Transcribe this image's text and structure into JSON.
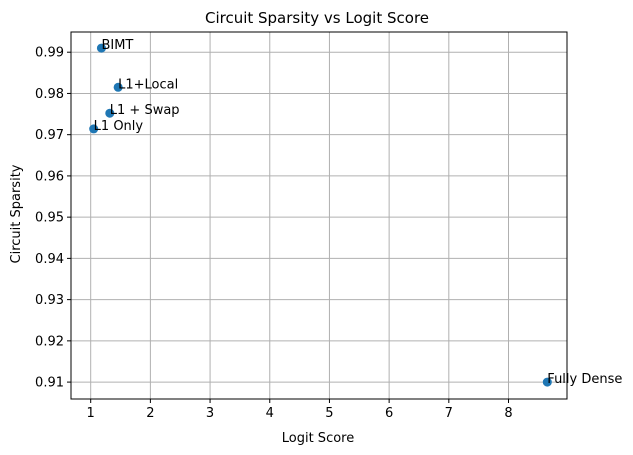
{
  "chart_data": {
    "type": "scatter",
    "title": "Circuit Sparsity vs Logit Score",
    "xlabel": "Logit Score",
    "ylabel": "Circuit Sparsity",
    "xlim": [
      0.67,
      8.98
    ],
    "ylim": [
      0.9059,
      0.9949
    ],
    "xticks": [
      1,
      2,
      3,
      4,
      5,
      6,
      7,
      8
    ],
    "yticks": [
      0.91,
      0.92,
      0.93,
      0.94,
      0.95,
      0.96,
      0.97,
      0.98,
      0.99
    ],
    "grid": true,
    "marker_color": "#1f77b4",
    "points": [
      {
        "label": "BIMT",
        "x": 1.18,
        "y": 0.991
      },
      {
        "label": "L1+Local",
        "x": 1.46,
        "y": 0.9815
      },
      {
        "label": "L1 + Swap",
        "x": 1.32,
        "y": 0.9752
      },
      {
        "label": "L1 Only",
        "x": 1.05,
        "y": 0.9714
      },
      {
        "label": "Fully Dense",
        "x": 8.65,
        "y": 0.91
      }
    ]
  }
}
